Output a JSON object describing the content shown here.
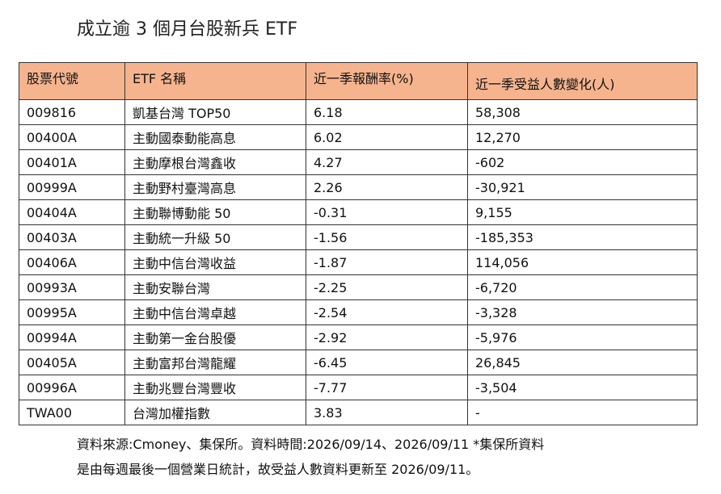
{
  "title": "成立逾 3 個月台股新兵 ETF",
  "table": {
    "headers": [
      "股票代號",
      "ETF 名稱",
      "近一季報酬率(%)",
      "近一季受益人數變化(人)"
    ],
    "rows": [
      [
        "009816",
        "凱基台灣 TOP50",
        "6.18",
        "58,308"
      ],
      [
        "00400A",
        "主動國泰動能高息",
        "6.02",
        "12,270"
      ],
      [
        "00401A",
        "主動摩根台灣鑫收",
        "4.27",
        "-602"
      ],
      [
        "00999A",
        "主動野村臺灣高息",
        "2.26",
        "-30,921"
      ],
      [
        "00404A",
        "主動聯博動能 50",
        "-0.31",
        "9,155"
      ],
      [
        "00403A",
        "主動統一升級 50",
        "-1.56",
        "-185,353"
      ],
      [
        "00406A",
        "主動中信台灣收益",
        "-1.87",
        "114,056"
      ],
      [
        "00993A",
        "主動安聯台灣",
        "-2.25",
        "-6,720"
      ],
      [
        "00995A",
        "主動中信台灣卓越",
        "-2.54",
        "-3,328"
      ],
      [
        "00994A",
        "主動第一金台股優",
        "-2.92",
        "-5,976"
      ],
      [
        "00405A",
        "主動富邦台灣龍耀",
        "-6.45",
        "26,845"
      ],
      [
        "00996A",
        "主動兆豐台灣豐收",
        "-7.77",
        "-3,504"
      ],
      [
        "TWA00",
        "台灣加權指數",
        "3.83",
        "-"
      ]
    ]
  },
  "notes": {
    "line1": "資料來源:Cmoney、集保所。資料時間:2026/09/14、2026/09/11 *集保所資料",
    "line2": "是由每週最後一個營業日統計，故受益人數資料更新至 2026/09/11。"
  },
  "colors": {
    "header_bg": "#f6b48e",
    "border": "#333333"
  }
}
